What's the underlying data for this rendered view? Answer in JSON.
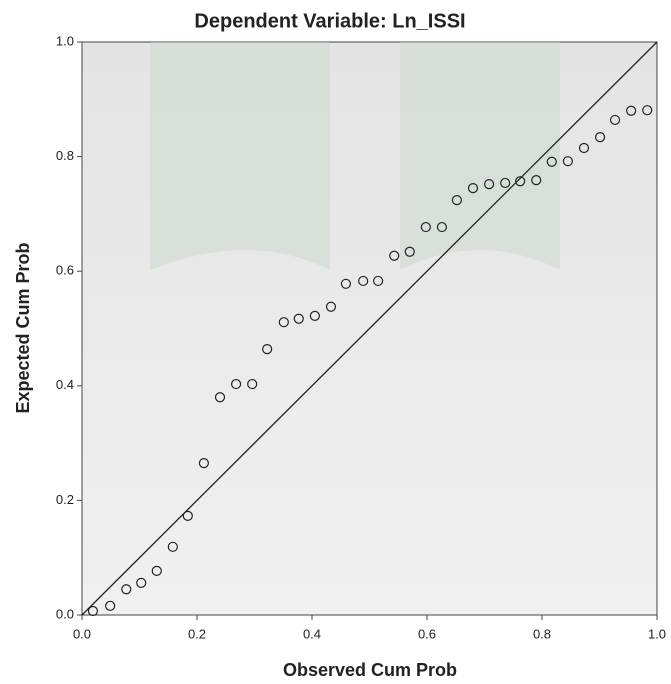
{
  "chart_data": {
    "type": "scatter",
    "title": "Dependent Variable: Ln_ISSI",
    "x_label": "Observed Cum Prob",
    "y_label": "Expected Cum Prob",
    "x": [
      0.019,
      0.049,
      0.077,
      0.103,
      0.13,
      0.158,
      0.184,
      0.212,
      0.24,
      0.268,
      0.296,
      0.322,
      0.351,
      0.377,
      0.405,
      0.433,
      0.459,
      0.489,
      0.515,
      0.543,
      0.57,
      0.598,
      0.626,
      0.652,
      0.68,
      0.708,
      0.736,
      0.762,
      0.79,
      0.817,
      0.845,
      0.873,
      0.901,
      0.927,
      0.955,
      0.983
    ],
    "values": [
      0.007,
      0.016,
      0.045,
      0.056,
      0.077,
      0.119,
      0.173,
      0.265,
      0.38,
      0.403,
      0.403,
      0.464,
      0.511,
      0.517,
      0.522,
      0.538,
      0.578,
      0.583,
      0.583,
      0.627,
      0.634,
      0.677,
      0.677,
      0.724,
      0.745,
      0.752,
      0.754,
      0.757,
      0.759,
      0.791,
      0.792,
      0.815,
      0.834,
      0.864,
      0.88,
      0.881
    ],
    "color": "#222222",
    "xlim": [
      0,
      1
    ],
    "ylim": [
      0,
      1
    ],
    "xticks": [
      {
        "value": 0,
        "label": "0.0"
      },
      {
        "value": 0.2,
        "label": "0.2"
      },
      {
        "value": 0.4,
        "label": "0.4"
      },
      {
        "value": 0.6,
        "label": "0.6"
      },
      {
        "value": 0.8,
        "label": "0.8"
      },
      {
        "value": 1,
        "label": "1.0"
      }
    ],
    "yticks": [
      {
        "value": 0,
        "label": "0.0"
      },
      {
        "value": 0.2,
        "label": "0.2"
      },
      {
        "value": 0.4,
        "label": "0.4"
      },
      {
        "value": 0.6,
        "label": "0.6"
      },
      {
        "value": 0.8,
        "label": "0.8"
      },
      {
        "value": 1,
        "label": "1.0"
      }
    ],
    "reference_line": true
  }
}
